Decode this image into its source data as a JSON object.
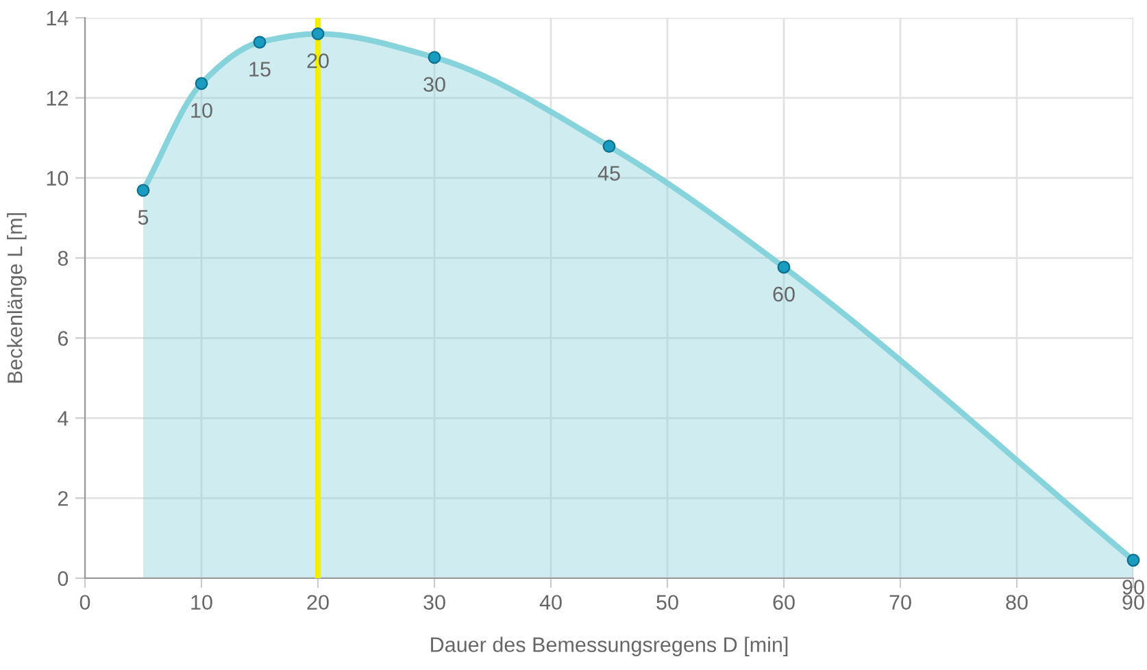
{
  "chart_data": {
    "type": "area",
    "xlabel": "Dauer des Bemessungsregens D [min]",
    "ylabel": "Beckenlänge L [m]",
    "x": [
      5,
      10,
      15,
      20,
      30,
      45,
      60,
      90
    ],
    "series": [
      {
        "color": "#86d3dc",
        "values": [
          9.69,
          12.36,
          13.39,
          13.6,
          13.01,
          10.79,
          7.77,
          0.45
        ]
      }
    ],
    "marker": "circle",
    "xlim": [
      0,
      90
    ],
    "xticks": [
      0,
      10,
      20,
      30,
      40,
      50,
      60,
      70,
      80,
      90
    ],
    "ylim": [
      0,
      14
    ],
    "yticks": [
      0,
      2,
      4,
      6,
      8,
      10,
      12,
      14
    ],
    "grid": true,
    "ref_lines": [
      {
        "axis": "x",
        "value": 20,
        "color": "#f0f000"
      }
    ],
    "annotations": [
      {
        "text": "5",
        "x": 5,
        "y": 9.69
      },
      {
        "text": "10",
        "x": 10,
        "y": 12.36
      },
      {
        "text": "15",
        "x": 15,
        "y": 13.39
      },
      {
        "text": "20",
        "x": 20,
        "y": 13.6
      },
      {
        "text": "30",
        "x": 30,
        "y": 13.01
      },
      {
        "text": "45",
        "x": 45,
        "y": 10.79
      },
      {
        "text": "60",
        "x": 60,
        "y": 7.77
      },
      {
        "text": "90",
        "x": 90,
        "y": 0.45
      }
    ]
  }
}
